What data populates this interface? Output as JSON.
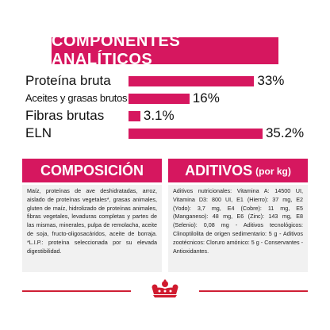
{
  "header": {
    "title": "COMPONENTES ANALÍTICOS"
  },
  "analytics": [
    {
      "label": "Proteína bruta",
      "value": 33,
      "display": "33%"
    },
    {
      "label": "Aceites y grasas brutos",
      "value": 16,
      "display": "16%"
    },
    {
      "label": "Fibras brutas",
      "value": 3.1,
      "display": "3.1%"
    },
    {
      "label": "ELN",
      "value": 35.2,
      "display": "35.2%"
    }
  ],
  "composition": {
    "title": "COMPOSICIÓN",
    "text": "Maíz, proteínas de ave deshidratadas, arroz, aislado de proteínas vegetales*, grasas animales, gluten de maíz, hidrolizado de proteínas animales, fibras vegetales, levaduras completas y partes de las mismas, minerales, pulpa de remolacha, aceite de soja, fructo-oligosacáridos, aceite de borraja. *L.I.P.: proteína seleccionada por su elevada digestibilidad."
  },
  "additives": {
    "title": "ADITIVOS",
    "subtitle": "(por kg)",
    "text": "Aditivos nutricionales: Vitamina A: 14500 UI, Vitamina D3: 800 UI, E1 (Hierro): 37 mg, E2 (Yodo): 3,7 mg, E4 (Cobre): 11 mg, E5 (Manganeso): 48 mg, E6 (Zinc): 143 mg, E8 (Selenio): 0,08 mg - Aditivos tecnológicos: Clinoptilolita de origen sedimentario: 5 g - Aditivos zootécnicos: Cloruro amónico: 5 g - Conservantes - Antioxidantes."
  },
  "colors": {
    "accent": "#d6175f",
    "panel": "#f1f1f1",
    "footer_line": "#cf1f34"
  },
  "brand": {
    "logo": "royal-canin-crown-logo"
  }
}
